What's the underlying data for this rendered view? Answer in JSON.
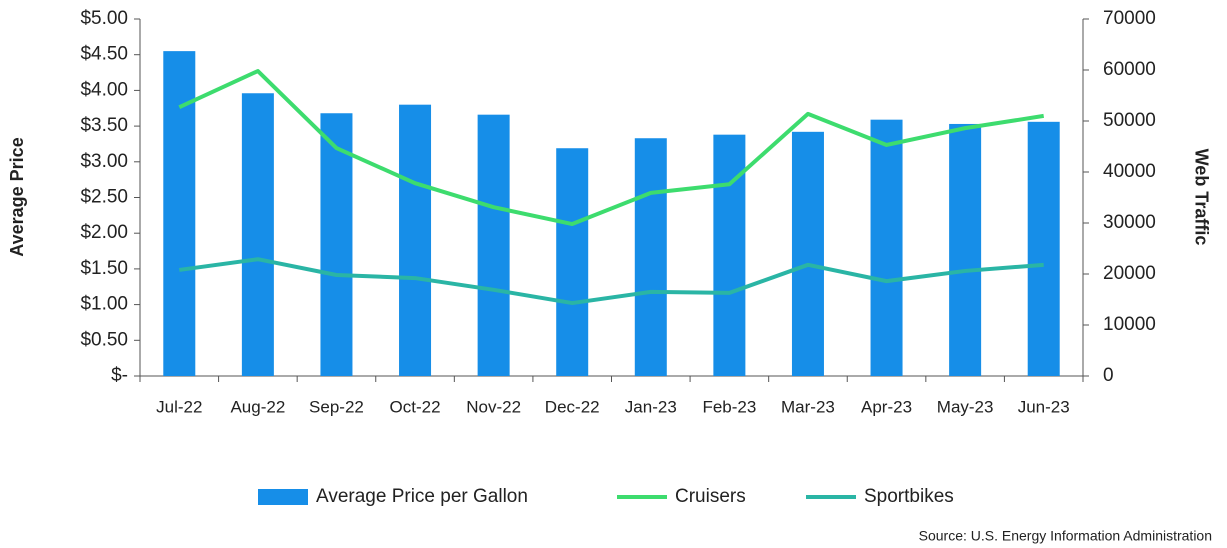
{
  "chart_data": {
    "type": "bar",
    "y_label": "Average Price",
    "y2_label": "Web Traffic",
    "source": "Source: U.S. Energy Information Administration",
    "categories": [
      "Jul-22",
      "Aug-22",
      "Sep-22",
      "Oct-22",
      "Nov-22",
      "Dec-22",
      "Jan-23",
      "Feb-23",
      "Mar-23",
      "Apr-23",
      "May-23",
      "Jun-23"
    ],
    "series": [
      {
        "name": "Average Price per Gallon",
        "type": "bar",
        "color": "#168ee8",
        "values": [
          4.55,
          3.96,
          3.68,
          3.8,
          3.66,
          3.19,
          3.33,
          3.38,
          3.42,
          3.59,
          3.53,
          3.56
        ]
      },
      {
        "name": "Cruisers",
        "type": "line",
        "axis": "y2",
        "color": "#3ddc6e",
        "values": [
          52700,
          59800,
          44700,
          37800,
          33100,
          29800,
          35900,
          37600,
          51400,
          45300,
          48600,
          51000
        ]
      },
      {
        "name": "Sportbikes",
        "type": "line",
        "axis": "y2",
        "color": "#2ab5a5",
        "values": [
          20800,
          22900,
          19800,
          19200,
          16900,
          14300,
          16500,
          16300,
          21800,
          18600,
          20600,
          21800
        ]
      }
    ],
    "ylim": [
      0,
      5
    ],
    "yticks": [
      {
        "value": 0,
        "label": "$-"
      },
      {
        "value": 0.5,
        "label": "$0.50"
      },
      {
        "value": 1,
        "label": "$1.00"
      },
      {
        "value": 1.5,
        "label": "$1.50"
      },
      {
        "value": 2,
        "label": "$2.00"
      },
      {
        "value": 2.5,
        "label": "$2.50"
      },
      {
        "value": 3,
        "label": "$3.00"
      },
      {
        "value": 3.5,
        "label": "$3.50"
      },
      {
        "value": 4,
        "label": "$4.00"
      },
      {
        "value": 4.5,
        "label": "$4.50"
      },
      {
        "value": 5,
        "label": "$5.00"
      }
    ],
    "y2lim": [
      0,
      70000
    ],
    "y2ticks": [
      0,
      10000,
      20000,
      30000,
      40000,
      50000,
      60000,
      70000
    ],
    "legend": "bottom"
  }
}
